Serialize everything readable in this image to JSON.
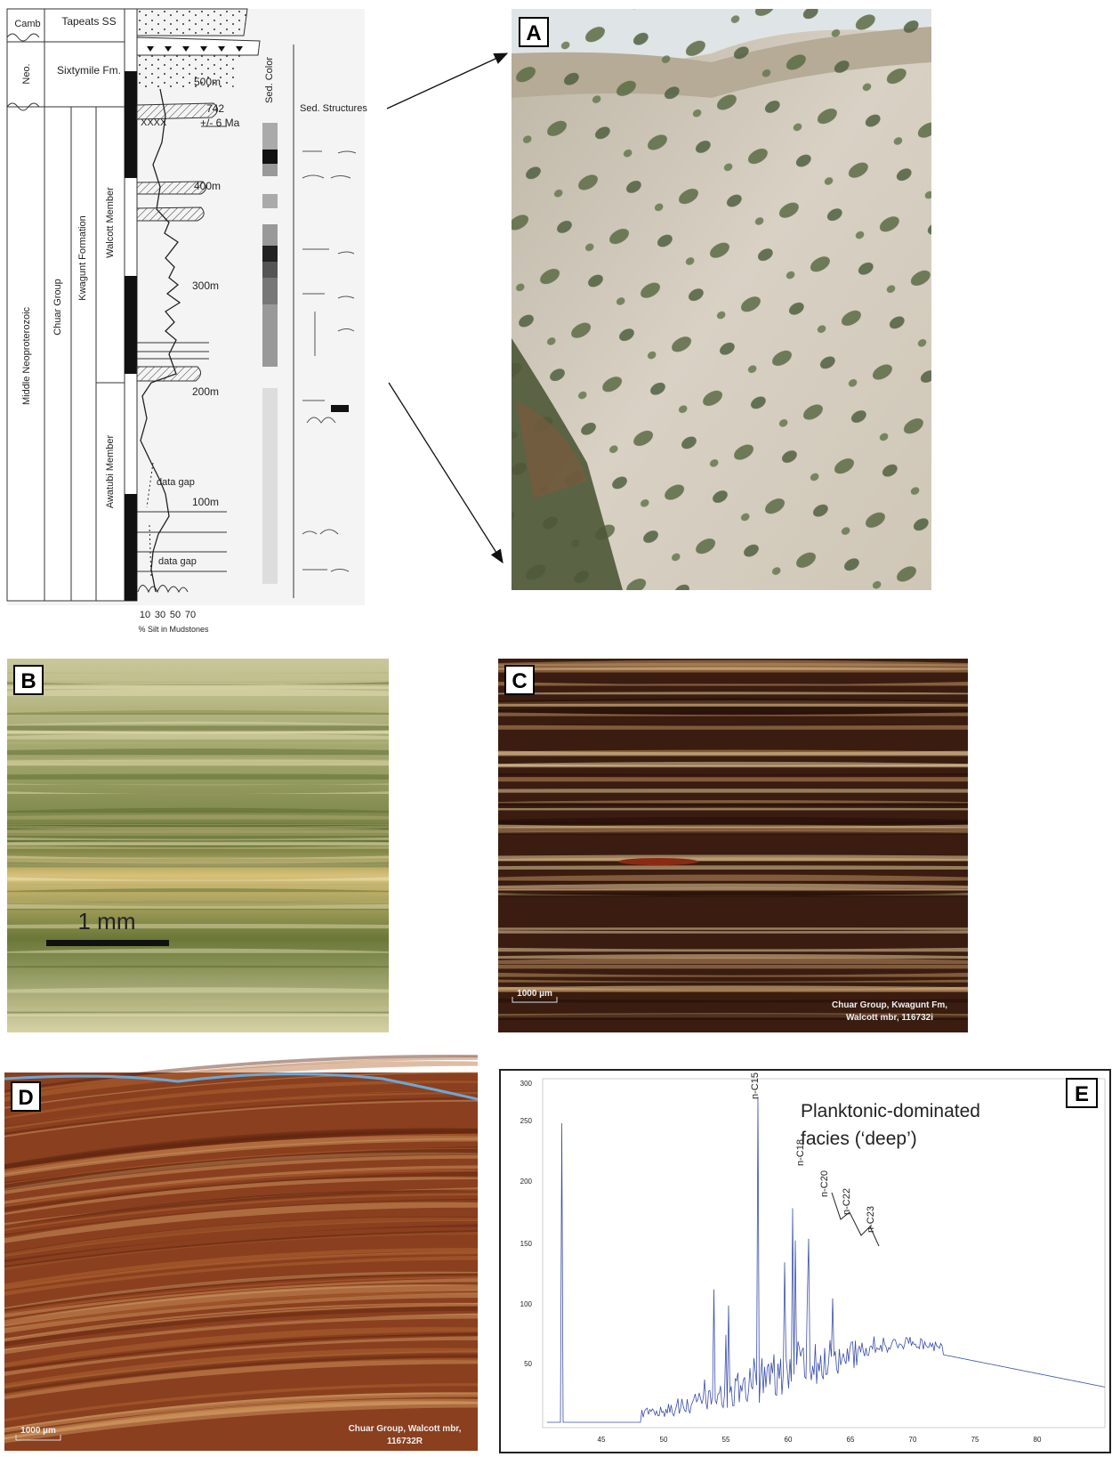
{
  "panel_labels": [
    "A",
    "B",
    "C",
    "D",
    "E"
  ],
  "column": {
    "camb": "Camb",
    "neo": "Neo.",
    "tapeats": "Tapeats SS",
    "sixtymile": "Sixtymile Fm.",
    "era": "Middle Neoproterozoic",
    "group": "Chuar Group",
    "formation": "Kwagunt Formation",
    "walcott": "Walcott Member",
    "awatubi": "Awatubi Member",
    "depths": [
      "500m",
      "400m",
      "300m",
      "200m",
      "100m"
    ],
    "age": "742",
    "age_error": "+/- 6 Ma",
    "tuff": "XXXX",
    "data_gaps": [
      "data gap",
      "data gap"
    ],
    "sed_color": "Sed. Color",
    "sed_structures": "Sed. Structures",
    "silt_ticks": [
      "10",
      "30",
      "50",
      "70"
    ],
    "silt_axis": "% Silt in Mudstones"
  },
  "panel_b": {
    "scale": "1 mm"
  },
  "panel_c": {
    "scale": "1000 µm",
    "caption": [
      "Chuar Group, Kwagunt Fm,",
      "Walcott mbr, 116732i"
    ]
  },
  "panel_d": {
    "scale": "1000 µm",
    "caption": [
      "Chuar Group, Walcott mbr,",
      "116732R"
    ]
  },
  "panel_e": {
    "title": [
      "Planktonic-dominated",
      "facies (‘deep’)"
    ],
    "peaks": [
      "n-C15",
      "n-C18",
      "n-C20",
      "n-C22",
      "n-C23"
    ],
    "yticks": [
      "300",
      "250",
      "200",
      "150",
      "100",
      "50"
    ],
    "xticks": [
      "45",
      "50",
      "55",
      "60",
      "65",
      "70",
      "75",
      "80"
    ]
  }
}
